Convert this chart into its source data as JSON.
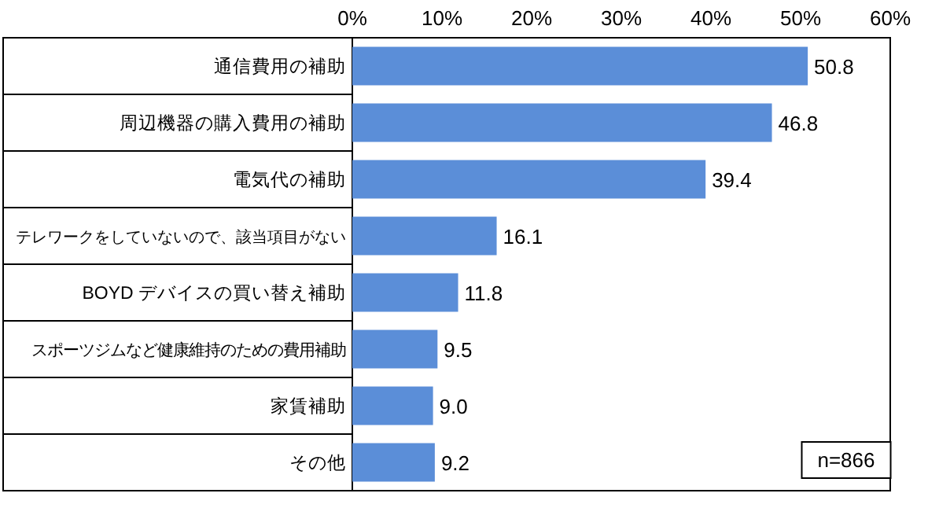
{
  "chart_data": {
    "type": "bar",
    "orientation": "horizontal",
    "categories": [
      "通信費用の補助",
      "周辺機器の購入費用の補助",
      "電気代の補助",
      "テレワークをしていないので、該当項目がない",
      "BOYD デバイスの買い替え補助",
      "スポーツジムなど健康維持のための費用補助",
      "家賃補助",
      "その他"
    ],
    "values": [
      50.8,
      46.8,
      39.4,
      16.1,
      11.8,
      9.5,
      9.0,
      9.2
    ],
    "value_labels": [
      "50.8",
      "46.8",
      "39.4",
      "16.1",
      "11.8",
      "9.5",
      "9.0",
      "9.2"
    ],
    "color": "#5b8ed8",
    "xlim": [
      0,
      60
    ],
    "xticks": [
      {
        "value": 0,
        "label": "0%"
      },
      {
        "value": 10,
        "label": "10%"
      },
      {
        "value": 20,
        "label": "20%"
      },
      {
        "value": 30,
        "label": "30%"
      },
      {
        "value": 40,
        "label": "40%"
      },
      {
        "value": 50,
        "label": "50%"
      },
      {
        "value": 60,
        "label": "60%"
      }
    ],
    "annotations": [
      "n=866"
    ]
  }
}
